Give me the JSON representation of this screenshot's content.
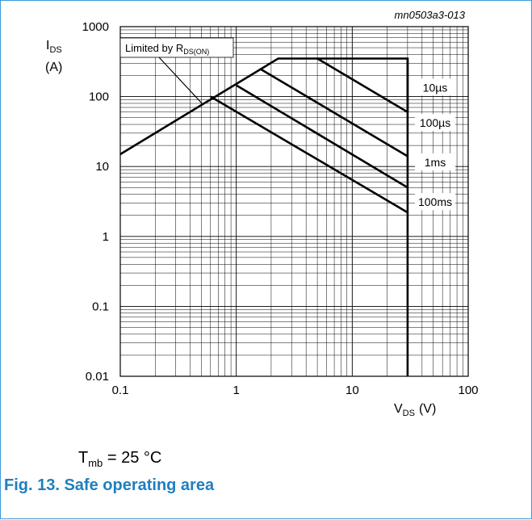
{
  "chart_data": {
    "type": "line",
    "image_id": "mn0503a3-013",
    "xscale": "log",
    "yscale": "log",
    "xlim": [
      0.1,
      100
    ],
    "ylim": [
      0.01,
      1000
    ],
    "x_ticks": [
      "0.1",
      "1",
      "10",
      "100"
    ],
    "y_ticks": [
      "0.01",
      "0.1",
      "1",
      "10",
      "100",
      "1000"
    ],
    "xlabel": {
      "main": "V",
      "sub": "DS",
      "unit": "(V)"
    },
    "ylabel": {
      "main": "I",
      "sub": "DS",
      "unit": "(A)"
    },
    "grid": true,
    "annotation": {
      "main": "Limited by R",
      "sub": "DS(ON)"
    },
    "series": [
      {
        "name": "10µs",
        "points": [
          [
            0.1,
            15
          ],
          [
            2.3,
            350
          ],
          [
            30,
            350
          ],
          [
            30,
            60
          ]
        ]
      },
      {
        "name": "100µs",
        "points": [
          [
            5,
            350
          ],
          [
            30,
            60
          ]
        ]
      },
      {
        "name": "",
        "points": [
          [
            1.6,
            250
          ],
          [
            30,
            14
          ]
        ]
      },
      {
        "name": "1ms",
        "points": [
          [
            1,
            145
          ],
          [
            30,
            5
          ]
        ]
      },
      {
        "name": "100ms",
        "points": [
          [
            0.6,
            100
          ],
          [
            30,
            2.2
          ]
        ]
      },
      {
        "name": "",
        "points": [
          [
            30,
            0.01
          ],
          [
            30,
            350
          ]
        ]
      }
    ],
    "labels": [
      "10µs",
      "100µs",
      "1ms",
      "100ms"
    ]
  },
  "condition": {
    "main": "T",
    "sub": "mb",
    "rest": " = 25 °C"
  },
  "caption": "Fig. 13. Safe operating area"
}
